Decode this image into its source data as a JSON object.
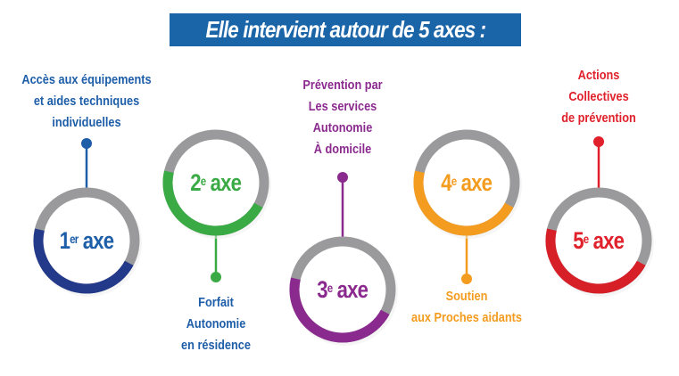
{
  "title": "Elle intervient autour de 5 axes :",
  "axes": [
    {
      "num": "1",
      "sup": "er",
      "word": "axe",
      "color": "#1e5ea8",
      "ring": "#23398a",
      "lines": [
        "Accès aux  équipements",
        "et aides techniques",
        "individuelles"
      ]
    },
    {
      "num": "2",
      "sup": "e",
      "word": "axe",
      "color": "#3aaa45",
      "ring": "#3aaa45",
      "text_color": "#1e5ea8",
      "lines": [
        "Forfait",
        "Autonomie",
        "en résidence"
      ]
    },
    {
      "num": "3",
      "sup": "e",
      "word": "axe",
      "color": "#8b2a8e",
      "ring": "#8b2a8e",
      "lines": [
        "Prévention par",
        "Les services",
        "Autonomie",
        "À domicile"
      ]
    },
    {
      "num": "4",
      "sup": "e",
      "word": "axe",
      "color": "#f39c1f",
      "ring": "#f39c1f",
      "lines": [
        "Soutien",
        "aux Proches aidants"
      ]
    },
    {
      "num": "5",
      "sup": "e",
      "word": "axe",
      "color": "#e0202a",
      "ring": "#d71f28",
      "lines": [
        "Actions",
        "Collectives",
        "de prévention"
      ]
    }
  ],
  "ring_gray": "#9a9a9c"
}
